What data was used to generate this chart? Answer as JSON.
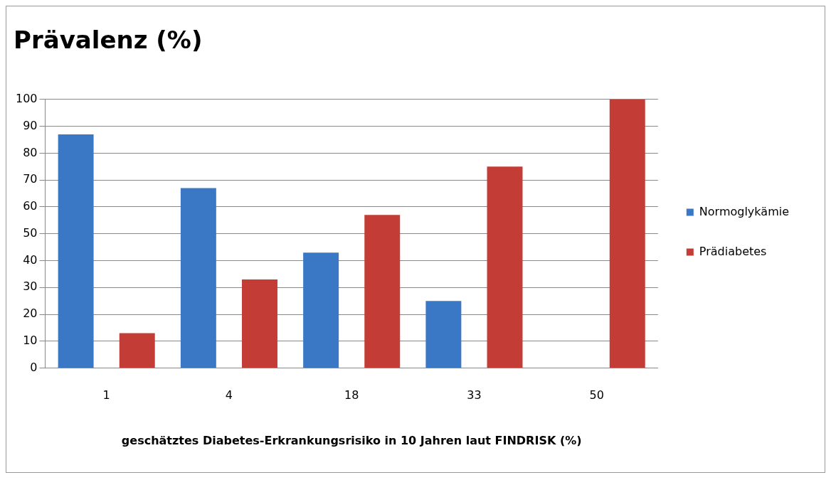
{
  "chart_data": {
    "type": "bar",
    "title": "Prävalenz (%)",
    "xlabel": "geschätztes Diabetes-Erkrankungsrisiko in 10 Jahren laut FINDRISK (%)",
    "categories": [
      "1",
      "4",
      "18",
      "33",
      "50"
    ],
    "series": [
      {
        "name": "Normoglykämie",
        "color": "#3a78c6",
        "values": [
          87,
          67,
          43,
          25,
          0
        ]
      },
      {
        "name": "Prädiabetes",
        "color": "#c43c36",
        "values": [
          13,
          33,
          57,
          75,
          100
        ]
      }
    ],
    "ylim": [
      0,
      100
    ],
    "yticks": [
      0,
      10,
      20,
      30,
      40,
      50,
      60,
      70,
      80,
      90,
      100
    ],
    "grid": "y",
    "legend": "right"
  }
}
